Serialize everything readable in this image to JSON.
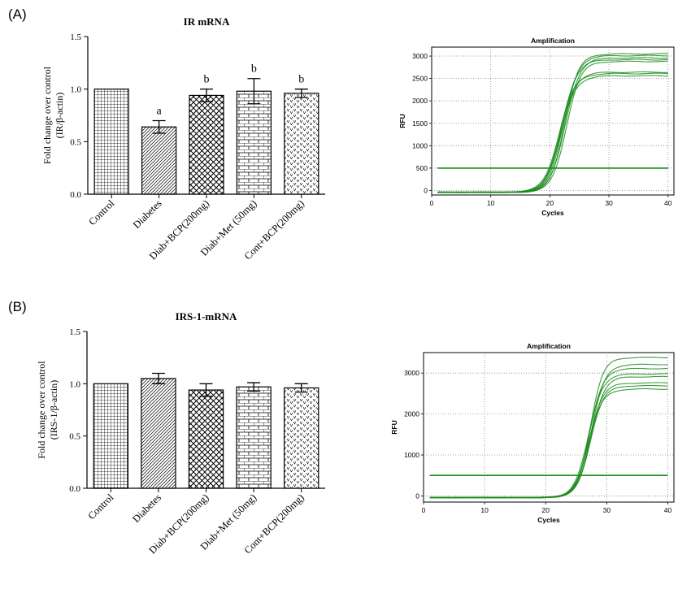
{
  "panels": [
    {
      "label": "(A)"
    },
    {
      "label": "(B)"
    }
  ],
  "chart_data": [
    {
      "type": "bar",
      "title": "IR mRNA",
      "xlabel": "",
      "ylabel": [
        "Fold change over control",
        "(IR/β-actin)"
      ],
      "categories": [
        "Control",
        "Diabetes",
        "Diab+BCP(200mg)",
        "Diab+Met (50mg)",
        "Cont+BCP(200mg)"
      ],
      "values": [
        1.0,
        0.64,
        0.94,
        0.98,
        0.96
      ],
      "errors": [
        0.0,
        0.06,
        0.06,
        0.12,
        0.04
      ],
      "annotations": [
        "",
        "a",
        "b",
        "b",
        "b"
      ],
      "ylim": [
        0.0,
        1.5
      ],
      "yticks": [
        "0.0",
        "0.5",
        "1.0",
        "1.5"
      ]
    },
    {
      "type": "line",
      "title": "Amplification",
      "xlabel": "Cycles",
      "ylabel": "RFU",
      "xlim": [
        0,
        41
      ],
      "ylim": [
        -100,
        3200
      ],
      "xticks": [
        0,
        10,
        20,
        30,
        40
      ],
      "yticks": [
        0,
        500,
        1000,
        1500,
        2000,
        2500,
        3000
      ],
      "threshold": 500,
      "grid": true,
      "color": "#1a8c1a",
      "series": [
        {
          "plateau": 3050,
          "midpoint": 22.3,
          "slope": 1.25
        },
        {
          "plateau": 3000,
          "midpoint": 22.6,
          "slope": 1.25
        },
        {
          "plateau": 2960,
          "midpoint": 22.0,
          "slope": 1.3
        },
        {
          "plateau": 2920,
          "midpoint": 22.8,
          "slope": 1.2
        },
        {
          "plateau": 3090,
          "midpoint": 22.5,
          "slope": 1.2
        },
        {
          "plateau": 2650,
          "midpoint": 21.6,
          "slope": 1.3
        },
        {
          "plateau": 2600,
          "midpoint": 21.8,
          "slope": 1.3
        },
        {
          "plateau": 2680,
          "midpoint": 21.9,
          "slope": 1.25
        }
      ]
    },
    {
      "type": "bar",
      "title": "IRS-1-mRNA",
      "xlabel": "",
      "ylabel": [
        "Fold change over control",
        "(IRS-1/β-actin)"
      ],
      "categories": [
        "Control",
        "Diabetes",
        "Diab+BCP(200mg)",
        "Diab+Met (50mg)",
        "Cont+BCP(200mg)"
      ],
      "values": [
        1.0,
        1.05,
        0.94,
        0.97,
        0.96
      ],
      "errors": [
        0.0,
        0.05,
        0.06,
        0.04,
        0.04
      ],
      "annotations": [
        "",
        "",
        "",
        "",
        ""
      ],
      "ylim": [
        0.0,
        1.5
      ],
      "yticks": [
        "0.0",
        "0.5",
        "1.0",
        "1.5"
      ]
    },
    {
      "type": "line",
      "title": "Amplification",
      "xlabel": "Cycles",
      "ylabel": "RFU",
      "xlim": [
        0,
        41
      ],
      "ylim": [
        -150,
        3500
      ],
      "xticks": [
        0,
        10,
        20,
        30,
        40
      ],
      "yticks": [
        0,
        1000,
        2000,
        3000
      ],
      "threshold": 500,
      "grid": true,
      "color": "#1a8c1a",
      "series": [
        {
          "plateau": 3420,
          "midpoint": 27.3,
          "slope": 1.05
        },
        {
          "plateau": 3250,
          "midpoint": 27.5,
          "slope": 1.1
        },
        {
          "plateau": 3150,
          "midpoint": 27.2,
          "slope": 1.1
        },
        {
          "plateau": 3020,
          "midpoint": 27.0,
          "slope": 1.15
        },
        {
          "plateau": 2950,
          "midpoint": 27.4,
          "slope": 1.1
        },
        {
          "plateau": 2800,
          "midpoint": 27.1,
          "slope": 1.15
        },
        {
          "plateau": 2730,
          "midpoint": 27.3,
          "slope": 1.1
        },
        {
          "plateau": 2650,
          "midpoint": 27.0,
          "slope": 1.15
        }
      ]
    }
  ]
}
